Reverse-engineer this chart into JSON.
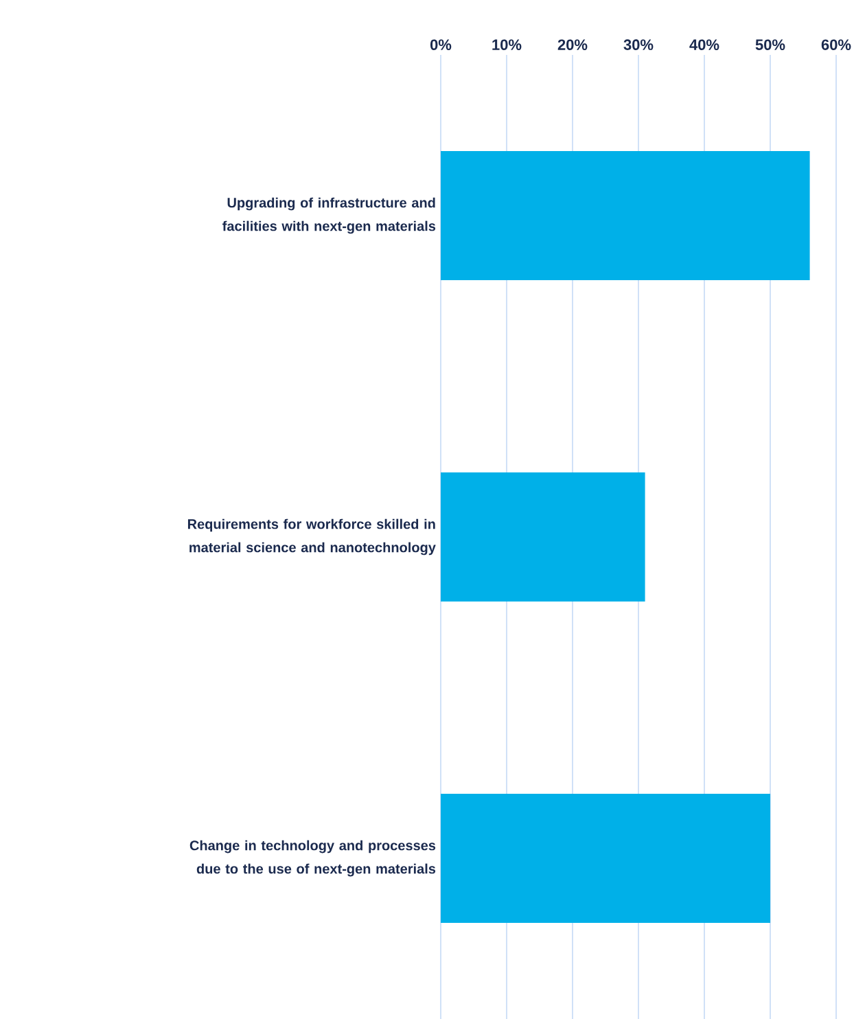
{
  "chart_data": {
    "type": "bar",
    "orientation": "horizontal",
    "categories": [
      "Upgrading of infrastructure and facilities with next-gen materials",
      "Requirements for workforce skilled in material science and nanotechnology",
      "Change in technology and processes due to the use of next-gen materials"
    ],
    "values": [
      56,
      31,
      50
    ],
    "color": "#00b0e8",
    "xlim": [
      0,
      60
    ],
    "xticks": [
      {
        "value": 0,
        "label": "0%"
      },
      {
        "value": 10,
        "label": "10%"
      },
      {
        "value": 20,
        "label": "20%"
      },
      {
        "value": 30,
        "label": "30%"
      },
      {
        "value": 40,
        "label": "40%"
      },
      {
        "value": 50,
        "label": "50%"
      },
      {
        "value": 60,
        "label": "60%"
      }
    ],
    "grid": "x"
  }
}
